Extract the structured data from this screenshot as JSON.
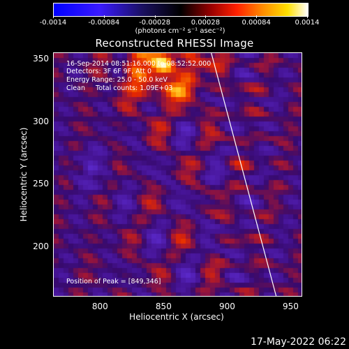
{
  "colorbar": {
    "ticks": [
      "-0.0014",
      "-0.00084",
      "-0.00028",
      "0.00028",
      "0.00084",
      "0.0014"
    ],
    "tick_values": [
      -0.0014,
      -0.00084,
      -0.00028,
      0.00028,
      0.00084,
      0.0014
    ],
    "unit": "(photons cm⁻² s⁻¹ asec⁻²)",
    "range": [
      -0.0014,
      0.0014
    ],
    "colormap": "RHESSI blue-black-red-yellow-white"
  },
  "chart_data": {
    "type": "heatmap",
    "title": "Reconstructed RHESSI Image",
    "xlabel": "Heliocentric X (arcsec)",
    "ylabel": "Heliocentric Y (arcsec)",
    "xlim": [
      763,
      958
    ],
    "ylim": [
      161,
      355
    ],
    "x_ticks": [
      800,
      850,
      900,
      950
    ],
    "y_ticks": [
      200,
      250,
      300,
      350
    ],
    "peak": [
      849,
      346
    ],
    "limb_line": {
      "x": [
        887,
        938
      ],
      "y": [
        355,
        161
      ]
    }
  },
  "info": {
    "time": "16-Sep-2014 08:51:16.000 to 08:52:52.000",
    "detectors": "Detectors: 3F 6F 9F, Att 0",
    "energy": "Energy Range: 25.0 - 50.0 keV",
    "clean": "Clean     Total counts: 1.09E+03",
    "peak": "Position of Peak = [849,346]"
  },
  "timestamp": "17-May-2022 06:22"
}
